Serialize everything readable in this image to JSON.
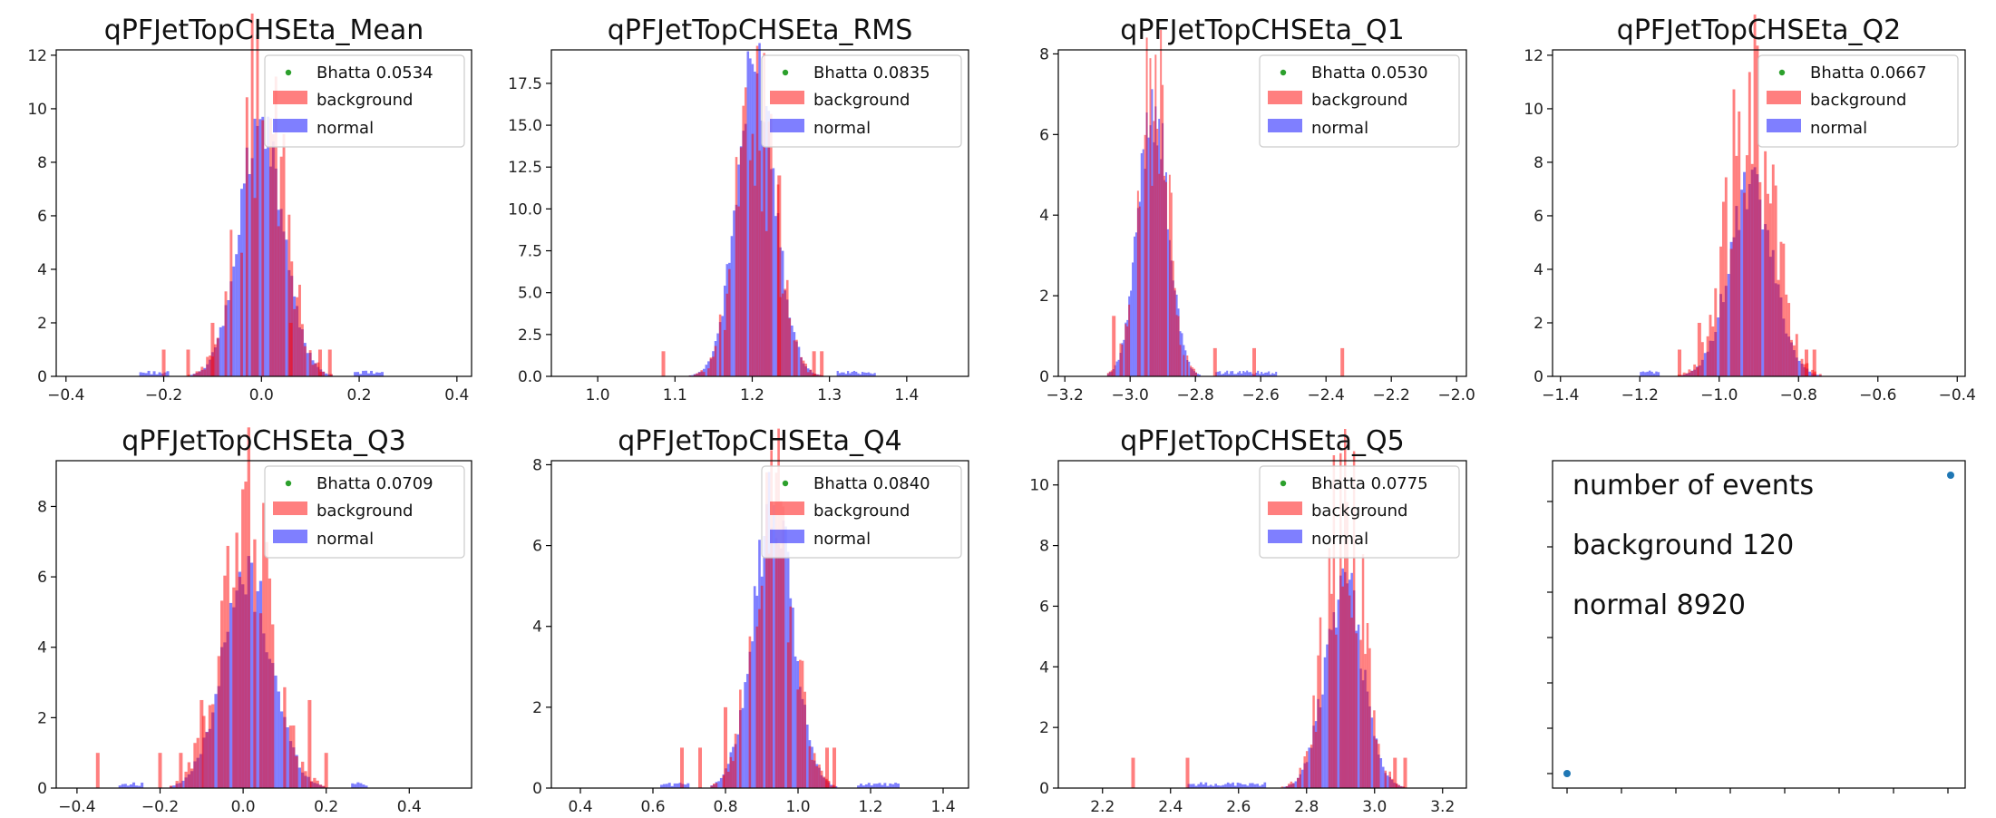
{
  "colors": {
    "background": "#ff0000",
    "normal": "#0000ff",
    "bhatta": "#2ca02c",
    "events": "#1f77b4"
  },
  "charts": [
    {
      "type": "bar",
      "title": "qPFJetTopCHSEta_Mean",
      "bhatta_label": "Bhatta 0.0534",
      "legend": [
        "background",
        "normal"
      ],
      "legend_position": "top-right",
      "xlim": [
        -0.42,
        0.43
      ],
      "ylim": [
        0,
        12.2
      ],
      "xticks": [
        -0.4,
        -0.2,
        0.0,
        0.2,
        0.4
      ],
      "xtick_labels": [
        "−0.4",
        "−0.2",
        "0.0",
        "0.2",
        "0.4"
      ],
      "yticks": [
        0,
        2,
        4,
        6,
        8,
        10,
        12
      ],
      "ytick_labels": [
        "0",
        "2",
        "4",
        "6",
        "8",
        "10",
        "12"
      ],
      "center": 0.0,
      "sigma": 0.045,
      "normal_peak": 9.3,
      "bg_peak": 12.0,
      "tail_lo": -0.25,
      "tail_hi": 0.25,
      "background_spikes": [
        [
          -0.2,
          1.0
        ],
        [
          -0.15,
          1.0
        ],
        [
          -0.1,
          2.0
        ],
        [
          0.06,
          2.0
        ],
        [
          0.12,
          1.0
        ],
        [
          0.14,
          1.0
        ]
      ]
    },
    {
      "type": "bar",
      "title": "qPFJetTopCHSEta_RMS",
      "bhatta_label": "Bhatta 0.0835",
      "legend": [
        "background",
        "normal"
      ],
      "legend_position": "top-right",
      "xlim": [
        0.94,
        1.48
      ],
      "ylim": [
        0,
        19.5
      ],
      "xticks": [
        1.0,
        1.1,
        1.2,
        1.3,
        1.4
      ],
      "xtick_labels": [
        "1.0",
        "1.1",
        "1.2",
        "1.3",
        "1.4"
      ],
      "yticks": [
        0,
        2.5,
        5,
        7.5,
        10,
        12.5,
        15,
        17.5
      ],
      "ytick_labels": [
        "0.0",
        "2.5",
        "5.0",
        "7.5",
        "10.0",
        "12.5",
        "15.0",
        "17.5"
      ],
      "center": 1.205,
      "sigma": 0.025,
      "normal_peak": 18.5,
      "bg_peak": 17.0,
      "tail_lo": 1.12,
      "tail_hi": 1.36,
      "background_spikes": [
        [
          1.085,
          1.5
        ],
        [
          1.235,
          12.0
        ],
        [
          1.28,
          1.5
        ],
        [
          1.29,
          1.5
        ]
      ]
    },
    {
      "type": "bar",
      "title": "qPFJetTopCHSEta_Q1",
      "bhatta_label": "Bhatta 0.0530",
      "legend": [
        "background",
        "normal"
      ],
      "legend_position": "top-right",
      "xlim": [
        -3.22,
        -1.97
      ],
      "ylim": [
        0,
        8.1
      ],
      "xticks": [
        -3.2,
        -3.0,
        -2.8,
        -2.6,
        -2.4,
        -2.2,
        -2.0
      ],
      "xtick_labels": [
        "−3.2",
        "−3.0",
        "−2.8",
        "−2.6",
        "−2.4",
        "−2.2",
        "−2.0"
      ],
      "yticks": [
        0,
        2,
        4,
        6,
        8
      ],
      "ytick_labels": [
        "0",
        "2",
        "4",
        "6",
        "8"
      ],
      "center": -2.93,
      "sigma": 0.045,
      "normal_peak": 6.8,
      "bg_peak": 7.8,
      "tail_lo": -3.05,
      "tail_hi": -2.55,
      "background_spikes": [
        [
          -3.05,
          1.5
        ],
        [
          -2.74,
          0.7
        ],
        [
          -2.62,
          0.7
        ],
        [
          -2.35,
          0.7
        ]
      ]
    },
    {
      "type": "bar",
      "title": "qPFJetTopCHSEta_Q2",
      "bhatta_label": "Bhatta 0.0667",
      "legend": [
        "background",
        "normal"
      ],
      "legend_position": "top-right",
      "xlim": [
        -1.42,
        -0.38
      ],
      "ylim": [
        0,
        12.2
      ],
      "xticks": [
        -1.4,
        -1.2,
        -1.0,
        -0.8,
        -0.6,
        -0.4
      ],
      "xtick_labels": [
        "−1.4",
        "−1.2",
        "−1.0",
        "−0.8",
        "−0.6",
        "−0.4"
      ],
      "yticks": [
        0,
        2,
        4,
        6,
        8,
        10,
        12
      ],
      "ytick_labels": [
        "0",
        "2",
        "4",
        "6",
        "8",
        "10",
        "12"
      ],
      "center": -0.92,
      "sigma": 0.055,
      "normal_peak": 7.0,
      "bg_peak": 12.0,
      "tail_lo": -1.2,
      "tail_hi": -0.7,
      "background_spikes": [
        [
          -1.1,
          1.0
        ],
        [
          -1.05,
          2.0
        ],
        [
          -0.78,
          1.0
        ],
        [
          -0.76,
          1.0
        ]
      ]
    },
    {
      "type": "bar",
      "title": "qPFJetTopCHSEta_Q3",
      "bhatta_label": "Bhatta 0.0709",
      "legend": [
        "background",
        "normal"
      ],
      "legend_position": "top-right",
      "xlim": [
        -0.45,
        0.55
      ],
      "ylim": [
        0,
        9.3
      ],
      "xticks": [
        -0.4,
        -0.2,
        0.0,
        0.2,
        0.4
      ],
      "xtick_labels": [
        "−0.4",
        "−0.2",
        "0.0",
        "0.2",
        "0.4"
      ],
      "yticks": [
        0,
        2,
        4,
        6,
        8
      ],
      "ytick_labels": [
        "0",
        "2",
        "4",
        "6",
        "8"
      ],
      "center": 0.01,
      "sigma": 0.06,
      "normal_peak": 6.0,
      "bg_peak": 9.0,
      "tail_lo": -0.3,
      "tail_hi": 0.3,
      "background_spikes": [
        [
          -0.35,
          1.0
        ],
        [
          -0.2,
          1.0
        ],
        [
          -0.15,
          1.0
        ],
        [
          -0.1,
          2.5
        ],
        [
          0.16,
          2.5
        ],
        [
          0.2,
          1.0
        ]
      ]
    },
    {
      "type": "bar",
      "title": "qPFJetTopCHSEta_Q4",
      "bhatta_label": "Bhatta 0.0840",
      "legend": [
        "background",
        "normal"
      ],
      "legend_position": "top-right",
      "xlim": [
        0.32,
        1.47
      ],
      "ylim": [
        0,
        8.1
      ],
      "xticks": [
        0.4,
        0.6,
        0.8,
        1.0,
        1.2,
        1.4
      ],
      "xtick_labels": [
        "0.4",
        "0.6",
        "0.8",
        "1.0",
        "1.2",
        "1.4"
      ],
      "yticks": [
        0,
        2,
        4,
        6,
        8
      ],
      "ytick_labels": [
        "0",
        "2",
        "4",
        "6",
        "8"
      ],
      "center": 0.93,
      "sigma": 0.055,
      "normal_peak": 7.0,
      "bg_peak": 7.5,
      "tail_lo": 0.62,
      "tail_hi": 1.28,
      "background_spikes": [
        [
          0.68,
          1.0
        ],
        [
          0.73,
          1.0
        ],
        [
          0.8,
          2.0
        ],
        [
          1.08,
          1.0
        ],
        [
          1.1,
          1.0
        ]
      ]
    },
    {
      "type": "bar",
      "title": "qPFJetTopCHSEta_Q5",
      "bhatta_label": "Bhatta 0.0775",
      "legend": [
        "background",
        "normal"
      ],
      "legend_position": "top-right",
      "xlim": [
        2.07,
        3.27
      ],
      "ylim": [
        0,
        10.8
      ],
      "xticks": [
        2.2,
        2.4,
        2.6,
        2.8,
        3.0,
        3.2
      ],
      "xtick_labels": [
        "2.2",
        "2.4",
        "2.6",
        "2.8",
        "3.0",
        "3.2"
      ],
      "yticks": [
        0,
        2,
        4,
        6,
        8,
        10
      ],
      "ytick_labels": [
        "0",
        "2",
        "4",
        "6",
        "8",
        "10"
      ],
      "center": 2.91,
      "sigma": 0.055,
      "normal_peak": 6.8,
      "bg_peak": 10.0,
      "tail_lo": 2.45,
      "tail_hi": 3.1,
      "background_spikes": [
        [
          2.29,
          1.0
        ],
        [
          2.45,
          1.0
        ],
        [
          3.06,
          1.0
        ],
        [
          3.09,
          1.0
        ]
      ]
    }
  ],
  "info_panel": {
    "lines": [
      "number of events",
      "background 120",
      "normal 8920"
    ],
    "points": [
      [
        0,
        0
      ],
      [
        1,
        1
      ]
    ]
  }
}
